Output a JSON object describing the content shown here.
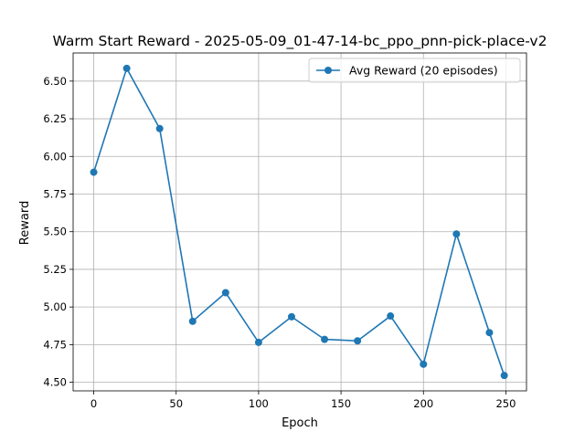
{
  "chart_data": {
    "type": "line",
    "title": "Warm Start Reward - 2025-05-09_01-47-14-bc_ppo_pnn-pick-place-v2",
    "xlabel": "Epoch",
    "ylabel": "Reward",
    "xlim": [
      -12.5,
      262.5
    ],
    "ylim": [
      4.443,
      6.687
    ],
    "x_ticks": [
      0,
      50,
      100,
      150,
      200,
      250
    ],
    "y_ticks": [
      4.5,
      4.75,
      5.0,
      5.25,
      5.5,
      5.75,
      6.0,
      6.25,
      6.5
    ],
    "y_tick_labels": [
      "4.50",
      "4.75",
      "5.00",
      "5.25",
      "5.50",
      "5.75",
      "6.00",
      "6.25",
      "6.50"
    ],
    "grid": true,
    "legend_position": "top-right",
    "series": [
      {
        "name": "Avg Reward (20 episodes)",
        "color": "#1f77b4",
        "marker": "circle",
        "x": [
          0,
          20,
          40,
          60,
          80,
          100,
          120,
          140,
          160,
          180,
          200,
          220,
          240,
          249
        ],
        "values": [
          5.895,
          6.585,
          6.185,
          4.905,
          5.095,
          4.765,
          4.935,
          4.785,
          4.775,
          4.94,
          4.62,
          5.485,
          4.83,
          4.545
        ]
      }
    ]
  }
}
